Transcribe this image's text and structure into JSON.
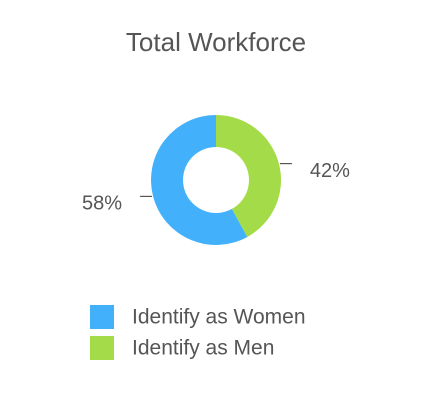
{
  "chart_data": {
    "type": "donut",
    "title": "Total Workforce",
    "categories": [
      "Identify as Women",
      "Identify as Men"
    ],
    "values": [
      58,
      42
    ],
    "value_labels": [
      "58%",
      "42%"
    ],
    "colors": [
      "#42b0fb",
      "#a3dc48"
    ]
  }
}
